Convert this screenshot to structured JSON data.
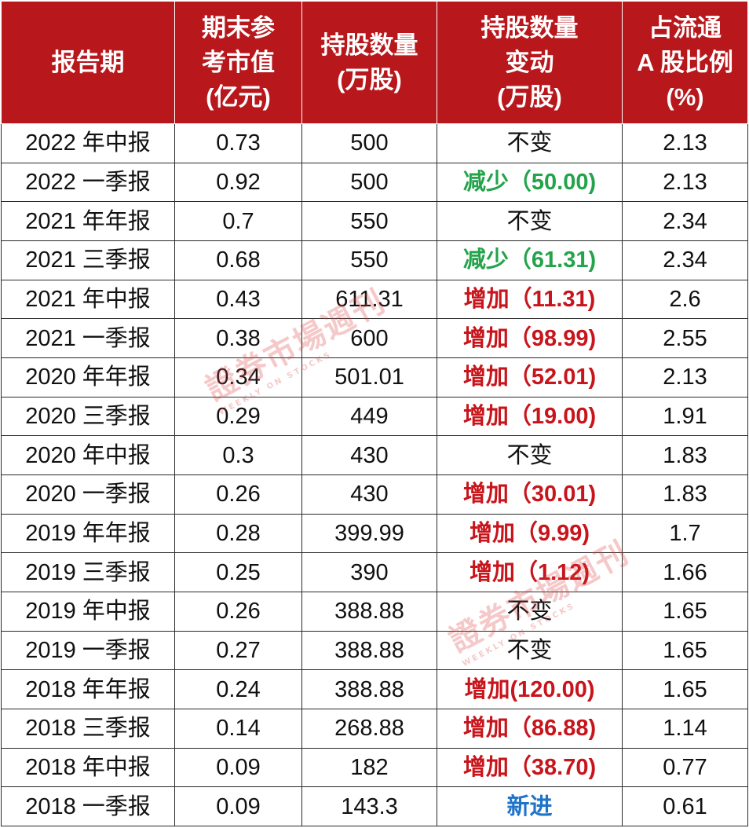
{
  "headers": {
    "period": [
      "报告期"
    ],
    "market_value": [
      "期末参",
      "考市值",
      "(亿元)"
    ],
    "holding": [
      "持股数量",
      "(万股)"
    ],
    "change": [
      "持股数量",
      "变动",
      "(万股)"
    ],
    "ratio": [
      "占流通",
      "A 股比例",
      "(%)"
    ]
  },
  "rows": [
    {
      "period": "2022 年中报",
      "value": "0.73",
      "shares": "500",
      "change": "不变",
      "change_type": "same",
      "ratio": "2.13"
    },
    {
      "period": "2022 一季报",
      "value": "0.92",
      "shares": "500",
      "change": "减少（50.00)",
      "change_type": "down",
      "ratio": "2.13"
    },
    {
      "period": "2021 年年报",
      "value": "0.7",
      "shares": "550",
      "change": "不变",
      "change_type": "same",
      "ratio": "2.34"
    },
    {
      "period": "2021 三季报",
      "value": "0.68",
      "shares": "550",
      "change": "减少（61.31)",
      "change_type": "down",
      "ratio": "2.34"
    },
    {
      "period": "2021 年中报",
      "value": "0.43",
      "shares": "611.31",
      "change": "增加（11.31)",
      "change_type": "up",
      "ratio": "2.6"
    },
    {
      "period": "2021 一季报",
      "value": "0.38",
      "shares": "600",
      "change": "增加（98.99)",
      "change_type": "up",
      "ratio": "2.55"
    },
    {
      "period": "2020 年年报",
      "value": "0.34",
      "shares": "501.01",
      "change": "增加（52.01)",
      "change_type": "up",
      "ratio": "2.13"
    },
    {
      "period": "2020 三季报",
      "value": "0.29",
      "shares": "449",
      "change": "增加（19.00)",
      "change_type": "up",
      "ratio": "1.91"
    },
    {
      "period": "2020 年中报",
      "value": "0.3",
      "shares": "430",
      "change": "不变",
      "change_type": "same",
      "ratio": "1.83"
    },
    {
      "period": "2020 一季报",
      "value": "0.26",
      "shares": "430",
      "change": "增加（30.01)",
      "change_type": "up",
      "ratio": "1.83"
    },
    {
      "period": "2019 年年报",
      "value": "0.28",
      "shares": "399.99",
      "change": "增加（9.99)",
      "change_type": "up",
      "ratio": "1.7"
    },
    {
      "period": "2019 三季报",
      "value": "0.25",
      "shares": "390",
      "change": "增加（1.12)",
      "change_type": "up",
      "ratio": "1.66"
    },
    {
      "period": "2019 年中报",
      "value": "0.26",
      "shares": "388.88",
      "change": "不变",
      "change_type": "same",
      "ratio": "1.65"
    },
    {
      "period": "2019 一季报",
      "value": "0.27",
      "shares": "388.88",
      "change": "不变",
      "change_type": "same",
      "ratio": "1.65"
    },
    {
      "period": "2018 年年报",
      "value": "0.24",
      "shares": "388.88",
      "change": "增加(120.00)",
      "change_type": "up",
      "ratio": "1.65"
    },
    {
      "period": "2018 三季报",
      "value": "0.14",
      "shares": "268.88",
      "change": "增加（86.88)",
      "change_type": "up",
      "ratio": "1.14"
    },
    {
      "period": "2018 年中报",
      "value": "0.09",
      "shares": "182",
      "change": "增加（38.70)",
      "change_type": "up",
      "ratio": "0.77"
    },
    {
      "period": "2018 一季报",
      "value": "0.09",
      "shares": "143.3",
      "change": "新进",
      "change_type": "new",
      "ratio": "0.61"
    }
  ],
  "colors": {
    "header_bg": "#b8171c",
    "increase": "#c8141b",
    "decrease": "#23a34a",
    "new_entry": "#1f74c8",
    "watermark": "#dc3c3c"
  },
  "watermark": {
    "text": "證券市場週刊",
    "subtext": "WEEKLY ON STOCKS"
  }
}
